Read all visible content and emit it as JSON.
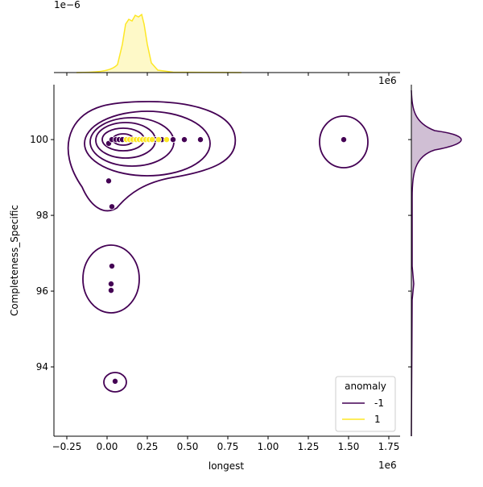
{
  "chart_data": {
    "type": "scatter",
    "x_label": "longest",
    "y_label": "Completeness_Specific",
    "x_offset_label": "1e6",
    "top_x_offset_label": "1e6",
    "top_y_offset_label": "1e−6",
    "xlim": [
      -0.33,
      1.82
    ],
    "ylim": [
      92.17,
      101.45
    ],
    "xticks": [
      {
        "value": -0.25,
        "label": "−0.25"
      },
      {
        "value": 0,
        "label": "0.00"
      },
      0.25,
      {
        "value": 0.5,
        "label": "0.50"
      },
      0.75,
      {
        "value": 1,
        "label": "1.00"
      },
      1.25,
      {
        "value": 1.5,
        "label": "1.50"
      },
      1.75
    ],
    "yticks": [
      94,
      96,
      98,
      100
    ],
    "legend_title": "anomaly",
    "legend_loc": "lower right",
    "series": [
      {
        "name": "-1",
        "color": "#440154",
        "x": [
          0.01,
          0.03,
          0.03,
          0.025,
          0.025,
          0.05,
          1.47,
          0.01,
          0.03,
          0.055,
          0.075,
          0.095,
          0.3,
          0.34,
          0.41,
          0.48,
          0.58
        ],
        "y": [
          98.91,
          98.23,
          96.66,
          96.19,
          96.02,
          93.62,
          100,
          99.9,
          100,
          100,
          100,
          100,
          100,
          100,
          100,
          100,
          100
        ]
      },
      {
        "name": "1",
        "color": "#fde725",
        "x": [
          0.12,
          0.14,
          0.16,
          0.18,
          0.2,
          0.22,
          0.24,
          0.26,
          0.28,
          0.32,
          0.37
        ],
        "y": [
          100,
          100,
          100,
          100,
          100,
          100,
          100,
          100,
          100,
          100,
          100
        ]
      }
    ]
  }
}
